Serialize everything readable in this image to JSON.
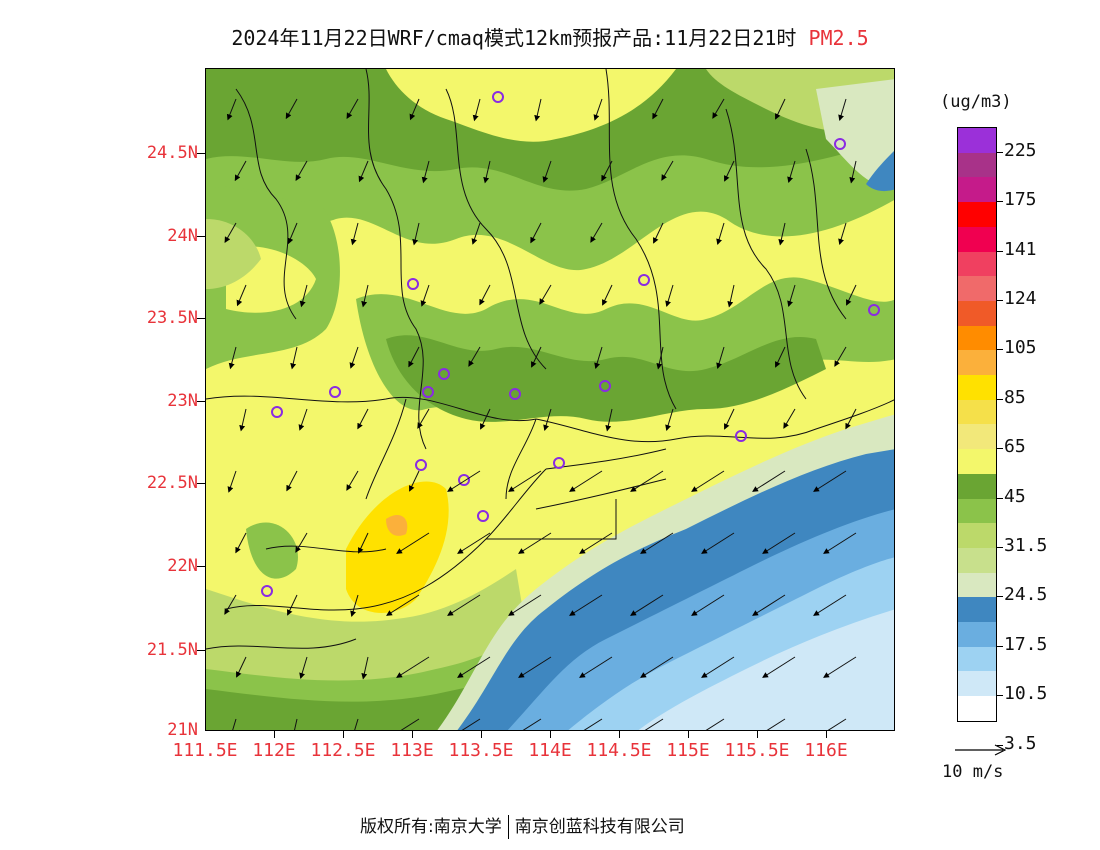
{
  "title": {
    "main": "2024年11月22日WRF/cmaq模式12km预报产品:11月22日21时",
    "pollutant": "PM2.5"
  },
  "axes": {
    "y_labels": [
      "24.5N",
      "24N",
      "23.5N",
      "23N",
      "22.5N",
      "22N",
      "21.5N",
      "21N"
    ],
    "x_labels": [
      "111.5E",
      "112E",
      "112.5E",
      "113E",
      "113.5E",
      "114E",
      "114.5E",
      "115E",
      "115.5E",
      "116E"
    ]
  },
  "colorbar": {
    "unit": "(ug/m3)",
    "labels": [
      "225",
      "175",
      "141",
      "124",
      "105",
      "85",
      "65",
      "45",
      "31.5",
      "24.5",
      "17.5",
      "10.5",
      "3.5"
    ],
    "colors": [
      "#9b30d9",
      "#a83289",
      "#c51b8a",
      "#ff0000",
      "#f00050",
      "#f04060",
      "#f06a6a",
      "#f05a28",
      "#ff8c00",
      "#fbb03b",
      "#ffe100",
      "#f5e04a",
      "#f2e87a",
      "#f3f76b",
      "#6aa533",
      "#8bc34a",
      "#bcd96a",
      "#c8e08c",
      "#d9e8c0",
      "#3f87c0",
      "#6aaee0",
      "#9dd2f2",
      "#cfe8f7",
      "#ffffff"
    ]
  },
  "wind_reference": {
    "label": "10 m/s"
  },
  "footer": {
    "left": "版权所有:南京大学",
    "right": "南京创蓝科技有限公司"
  },
  "colors": {
    "accent_red": "#e8333a",
    "site_marker": "#8a2be2"
  }
}
